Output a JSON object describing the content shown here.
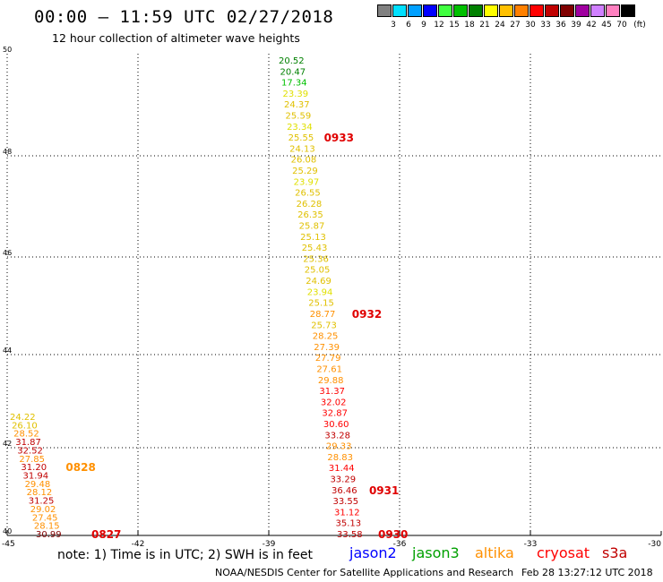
{
  "header": {
    "title": "00:00 – 11:59 UTC 02/27/2018",
    "subtitle": "12 hour collection of altimeter wave heights"
  },
  "color_scale": {
    "units": "(ft)",
    "swatches": [
      {
        "label": "3",
        "color": "#808080"
      },
      {
        "label": "6",
        "color": "#00e0ff"
      },
      {
        "label": "9",
        "color": "#00a0ff"
      },
      {
        "label": "12",
        "color": "#0000ff"
      },
      {
        "label": "15",
        "color": "#40ff40"
      },
      {
        "label": "18",
        "color": "#00c000"
      },
      {
        "label": "21",
        "color": "#008000"
      },
      {
        "label": "24",
        "color": "#ffff00"
      },
      {
        "label": "27",
        "color": "#ffc000"
      },
      {
        "label": "30",
        "color": "#ff8000"
      },
      {
        "label": "33",
        "color": "#ff0000"
      },
      {
        "label": "36",
        "color": "#c00000"
      },
      {
        "label": "39",
        "color": "#800000"
      },
      {
        "label": "42",
        "color": "#a000a0"
      },
      {
        "label": "45",
        "color": "#d080ff"
      },
      {
        "label": "70",
        "color": "#ff80c0"
      },
      {
        "label": "",
        "color": "#000000"
      }
    ]
  },
  "map": {
    "lat_labels": [
      "50",
      "48",
      "46",
      "44",
      "42",
      "40"
    ],
    "lon_labels": [
      "-45",
      "-42",
      "-39",
      "-36",
      "-33",
      "-30"
    ],
    "tracks": [
      {
        "name": "track-0933-0930",
        "points": [
          {
            "v": "20.52",
            "c": "#008000"
          },
          {
            "v": "20.47",
            "c": "#008000"
          },
          {
            "v": "17.34",
            "c": "#00c000"
          },
          {
            "v": "23.39",
            "c": "#e0e000"
          },
          {
            "v": "24.37",
            "c": "#e0c000"
          },
          {
            "v": "25.59",
            "c": "#e0c000"
          },
          {
            "v": "23.34",
            "c": "#e0e000"
          },
          {
            "v": "25.55",
            "c": "#e0c000"
          },
          {
            "v": "24.13",
            "c": "#e0c000"
          },
          {
            "v": "26.08",
            "c": "#e0c000"
          },
          {
            "v": "25.29",
            "c": "#e0c000"
          },
          {
            "v": "23.97",
            "c": "#e0e000"
          },
          {
            "v": "26.55",
            "c": "#e0c000"
          },
          {
            "v": "26.28",
            "c": "#e0c000"
          },
          {
            "v": "26.35",
            "c": "#e0c000"
          },
          {
            "v": "25.87",
            "c": "#e0c000"
          },
          {
            "v": "25.13",
            "c": "#e0c000"
          },
          {
            "v": "25.43",
            "c": "#e0c000"
          },
          {
            "v": "25.36",
            "c": "#e0c000"
          },
          {
            "v": "25.05",
            "c": "#e0c000"
          },
          {
            "v": "24.69",
            "c": "#e0c000"
          },
          {
            "v": "23.94",
            "c": "#e0e000"
          },
          {
            "v": "25.15",
            "c": "#e0c000"
          },
          {
            "v": "28.77",
            "c": "#ff9000"
          },
          {
            "v": "25.73",
            "c": "#e0c000"
          },
          {
            "v": "28.25",
            "c": "#ff9000"
          },
          {
            "v": "27.39",
            "c": "#ff9000"
          },
          {
            "v": "27.79",
            "c": "#ff9000"
          },
          {
            "v": "27.61",
            "c": "#ff9000"
          },
          {
            "v": "29.88",
            "c": "#ff9000"
          },
          {
            "v": "31.37",
            "c": "#ff0000"
          },
          {
            "v": "32.02",
            "c": "#ff0000"
          },
          {
            "v": "32.87",
            "c": "#ff0000"
          },
          {
            "v": "30.60",
            "c": "#ff0000"
          },
          {
            "v": "33.28",
            "c": "#c00000"
          },
          {
            "v": "29.33",
            "c": "#ff9000"
          },
          {
            "v": "28.83",
            "c": "#ff9000"
          },
          {
            "v": "31.44",
            "c": "#ff0000"
          },
          {
            "v": "33.29",
            "c": "#c00000"
          },
          {
            "v": "36.46",
            "c": "#c00000"
          },
          {
            "v": "33.55",
            "c": "#c00000"
          },
          {
            "v": "31.12",
            "c": "#ff0000"
          },
          {
            "v": "35.13",
            "c": "#c00000"
          },
          {
            "v": "33.58",
            "c": "#c00000"
          }
        ],
        "times": [
          {
            "label": "0933",
            "idx": 7,
            "dx": 40
          },
          {
            "label": "0932",
            "idx": 23,
            "dx": 47
          },
          {
            "label": "0931",
            "idx": 39,
            "dx": 42
          },
          {
            "label": "0930",
            "idx": 43,
            "dx": 46
          }
        ]
      },
      {
        "name": "track-0828-0827",
        "points": [
          {
            "v": "24.22",
            "c": "#e0c000"
          },
          {
            "v": "26.10",
            "c": "#e0c000"
          },
          {
            "v": "28.52",
            "c": "#ff9000"
          },
          {
            "v": "31.87",
            "c": "#c00000"
          },
          {
            "v": "32.52",
            "c": "#c00000"
          },
          {
            "v": "27.85",
            "c": "#ff9000"
          },
          {
            "v": "31.20",
            "c": "#c00000"
          },
          {
            "v": "31.94",
            "c": "#c00000"
          },
          {
            "v": "29.48",
            "c": "#ff9000"
          },
          {
            "v": "28.12",
            "c": "#ff9000"
          },
          {
            "v": "31.25",
            "c": "#c00000"
          },
          {
            "v": "29.02",
            "c": "#ff9000"
          },
          {
            "v": "27.45",
            "c": "#ff9000"
          },
          {
            "v": "28.15",
            "c": "#ff9000"
          },
          {
            "v": "30.99",
            "c": "#800000"
          }
        ],
        "times": [
          {
            "label": "0828",
            "idx": 6,
            "dx": 50
          },
          {
            "label": "0827",
            "idx": 14,
            "dx": 62
          }
        ]
      }
    ]
  },
  "footer": {
    "note": "note: 1) Time is in UTC; 2) SWH is in feet",
    "legend": [
      {
        "label": "jason2",
        "color": "#0000ff"
      },
      {
        "label": "jason3",
        "color": "#00a000"
      },
      {
        "label": "altika",
        "color": "#ff9000"
      },
      {
        "label": "cryosat",
        "color": "#ff0000"
      },
      {
        "label": "s3a",
        "color": "#c00000"
      }
    ],
    "credit": "NOAA/NESDIS Center for Satellite Applications and Research",
    "timestamp": "Feb 28 13:27:12 UTC 2018"
  }
}
